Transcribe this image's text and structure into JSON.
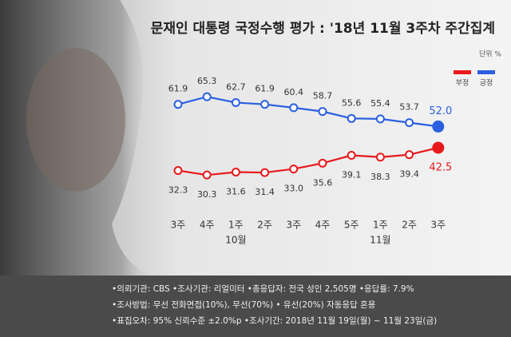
{
  "chart_data": {
    "type": "line",
    "title": "문재인 대통령 국정수행 평가 : '18년 11월 3주차 주간집계",
    "unit_label": "단위 %",
    "categories": [
      "3주",
      "4주",
      "1주",
      "2주",
      "3주",
      "4주",
      "5주",
      "1주",
      "2주",
      "3주"
    ],
    "category_groups": [
      null,
      null,
      "10월",
      null,
      null,
      null,
      null,
      "11월",
      null,
      null
    ],
    "ylim": [
      25,
      70
    ],
    "legend": "top-right",
    "series": [
      {
        "name": "긍정",
        "color": "#2a5fe0",
        "values": [
          61.9,
          65.3,
          62.7,
          61.9,
          60.4,
          58.7,
          55.6,
          55.4,
          53.7,
          52.0
        ],
        "value_labels": [
          "61.9",
          "65.3",
          "62.7",
          "61.9",
          "60.4",
          "58.7",
          "55.6",
          "55.4",
          "53.7",
          "52.0"
        ],
        "label_position": "above"
      },
      {
        "name": "부정",
        "color": "#e8191c",
        "values": [
          32.3,
          30.3,
          31.6,
          31.4,
          33.0,
          35.6,
          39.1,
          38.3,
          39.4,
          42.5
        ],
        "value_labels": [
          "32.3",
          "30.3",
          "31.6",
          "31.4",
          "33.0",
          "35.6",
          "39.1",
          "38.3",
          "39.4",
          "42.5"
        ],
        "label_position": "below"
      }
    ],
    "notes": [
      "•의뢰기관: CBS •조사기관: 리얼미터 •총응답자: 전국 성인 2,505명 •응답률: 7.9%",
      "•조사방법: 무선 전화면접(10%), 무선(70%) • 유선(20%) 자동응답 혼용",
      "•표집오차: 95% 신뢰수준 ±2.0%p •조사기간: 2018년 11월 19일(월) ~ 11월 23일(금)"
    ]
  }
}
